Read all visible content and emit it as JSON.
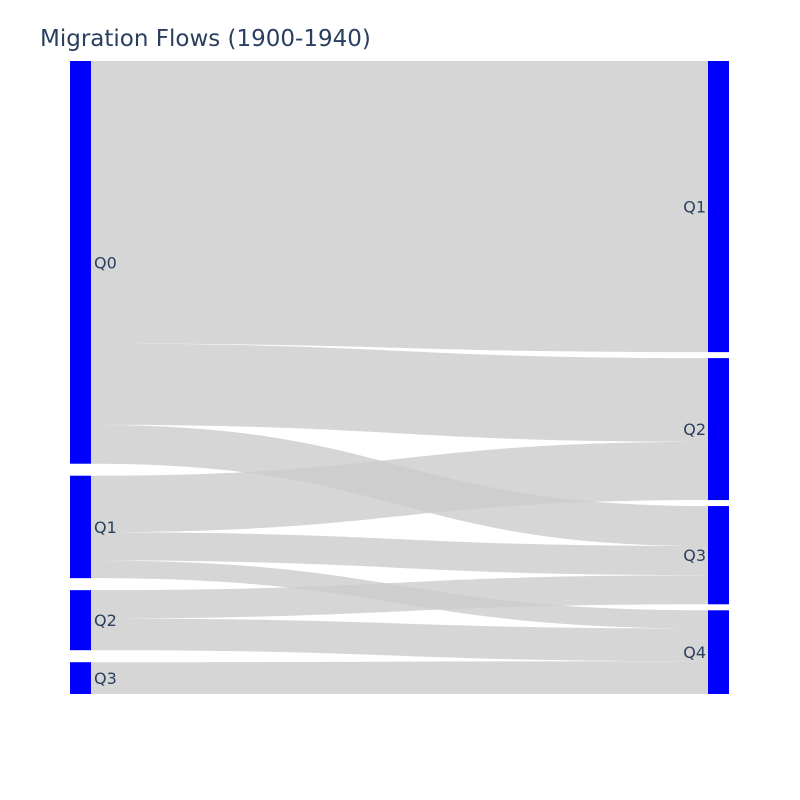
{
  "chart_data": {
    "type": "sankey",
    "title": "Migration Flows (1900-1940)",
    "node_color": "#0000ff",
    "link_color": "#cccccc",
    "link_opacity": 0.8,
    "source_nodes": [
      {
        "id": "s0",
        "label": "Q0"
      },
      {
        "id": "s1",
        "label": "Q1"
      },
      {
        "id": "s2",
        "label": "Q2"
      },
      {
        "id": "s3",
        "label": "Q3"
      }
    ],
    "target_nodes": [
      {
        "id": "t1",
        "label": "Q1"
      },
      {
        "id": "t2",
        "label": "Q2"
      },
      {
        "id": "t3",
        "label": "Q3"
      },
      {
        "id": "t4",
        "label": "Q4"
      }
    ],
    "links": [
      {
        "source": "s0",
        "target": "t1",
        "value": 40
      },
      {
        "source": "s0",
        "target": "t2",
        "value": 11.5
      },
      {
        "source": "s0",
        "target": "t3",
        "value": 5.5
      },
      {
        "source": "s1",
        "target": "t2",
        "value": 8
      },
      {
        "source": "s1",
        "target": "t3",
        "value": 4
      },
      {
        "source": "s1",
        "target": "t4",
        "value": 2.5
      },
      {
        "source": "s2",
        "target": "t3",
        "value": 4
      },
      {
        "source": "s2",
        "target": "t4",
        "value": 4.5
      },
      {
        "source": "s3",
        "target": "t4",
        "value": 4.5
      }
    ]
  }
}
